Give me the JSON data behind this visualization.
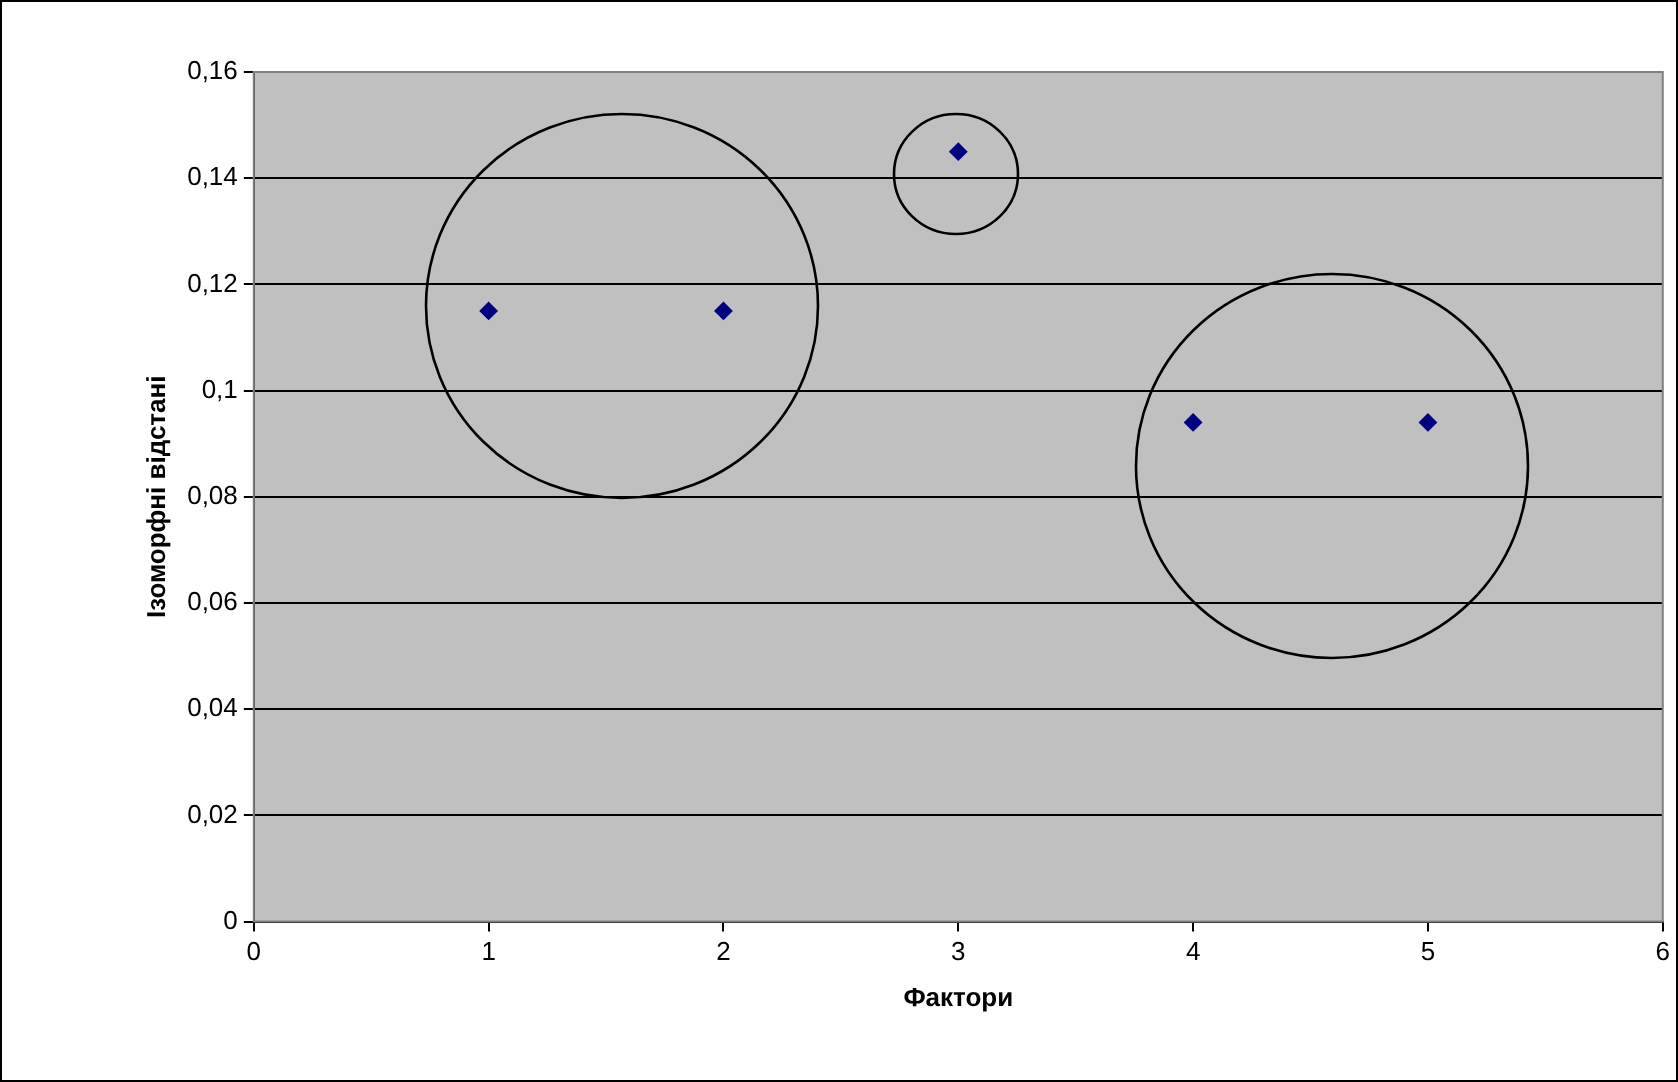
{
  "chart_data": {
    "type": "scatter",
    "xlabel": "Фактори",
    "ylabel": "Ізоморфні відстані",
    "x": [
      1,
      2,
      3,
      4,
      5
    ],
    "series": [
      {
        "color": "#000080",
        "values": [
          0.115,
          0.115,
          0.145,
          0.094,
          0.094
        ]
      }
    ],
    "xlim": [
      0,
      6
    ],
    "xticks": [
      0,
      1,
      2,
      3,
      4,
      5,
      6
    ],
    "ylim": [
      0,
      0.16
    ],
    "yticks": [
      0,
      {
        "value": 0.02,
        "label": "0,02"
      },
      {
        "value": 0.04,
        "label": "0,04"
      },
      {
        "value": 0.06,
        "label": "0,06"
      },
      {
        "value": 0.08,
        "label": "0,08"
      },
      {
        "value": 0.1,
        "label": "0,1"
      },
      {
        "value": 0.12,
        "label": "0,12"
      },
      {
        "value": 0.14,
        "label": "0,14"
      },
      {
        "value": 0.16,
        "label": "0,16"
      }
    ],
    "grid": "y",
    "legend": false,
    "marker": "diamond"
  }
}
